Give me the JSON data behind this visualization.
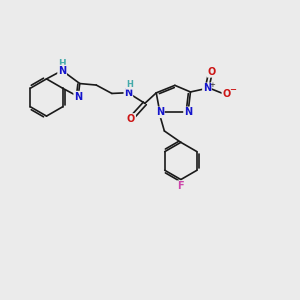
{
  "background_color": "#ebebeb",
  "bond_color": "#1a1a1a",
  "N_color": "#1414cc",
  "O_color": "#cc1414",
  "F_color": "#cc44aa",
  "H_color": "#44aaaa",
  "figsize": [
    3.0,
    3.0
  ],
  "dpi": 100,
  "xlim": [
    0,
    10
  ],
  "ylim": [
    0,
    10
  ]
}
